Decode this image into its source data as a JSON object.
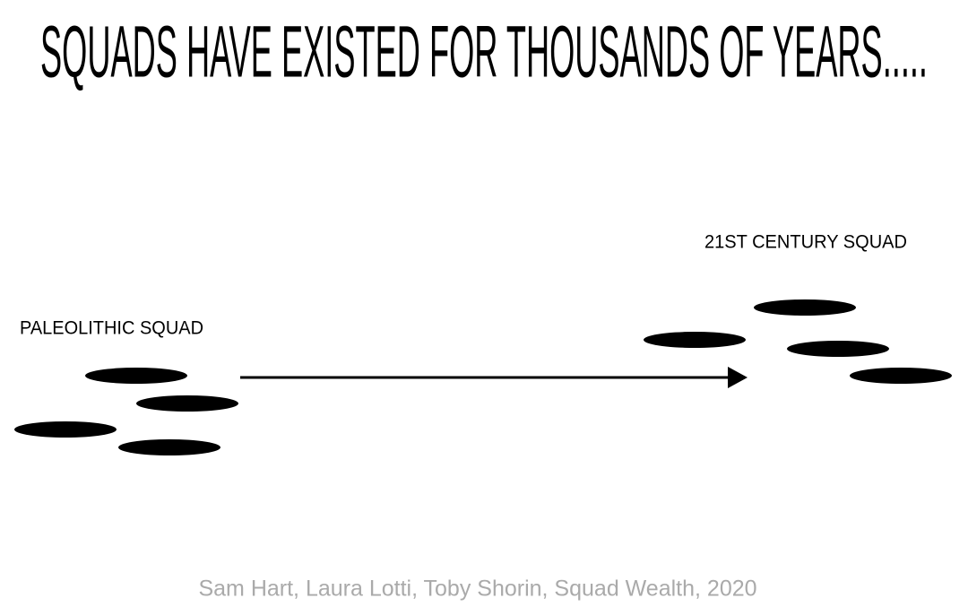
{
  "title": "SQUADS HAVE EXISTED FOR THOUSANDS OF YEARS.....",
  "left_label": "PALEOLITHIC SQUAD",
  "right_label": "21ST CENTURY SQUAD",
  "caption": "Sam Hart, Laura Lotti, Toby Shorin, Squad Wealth, 2020"
}
